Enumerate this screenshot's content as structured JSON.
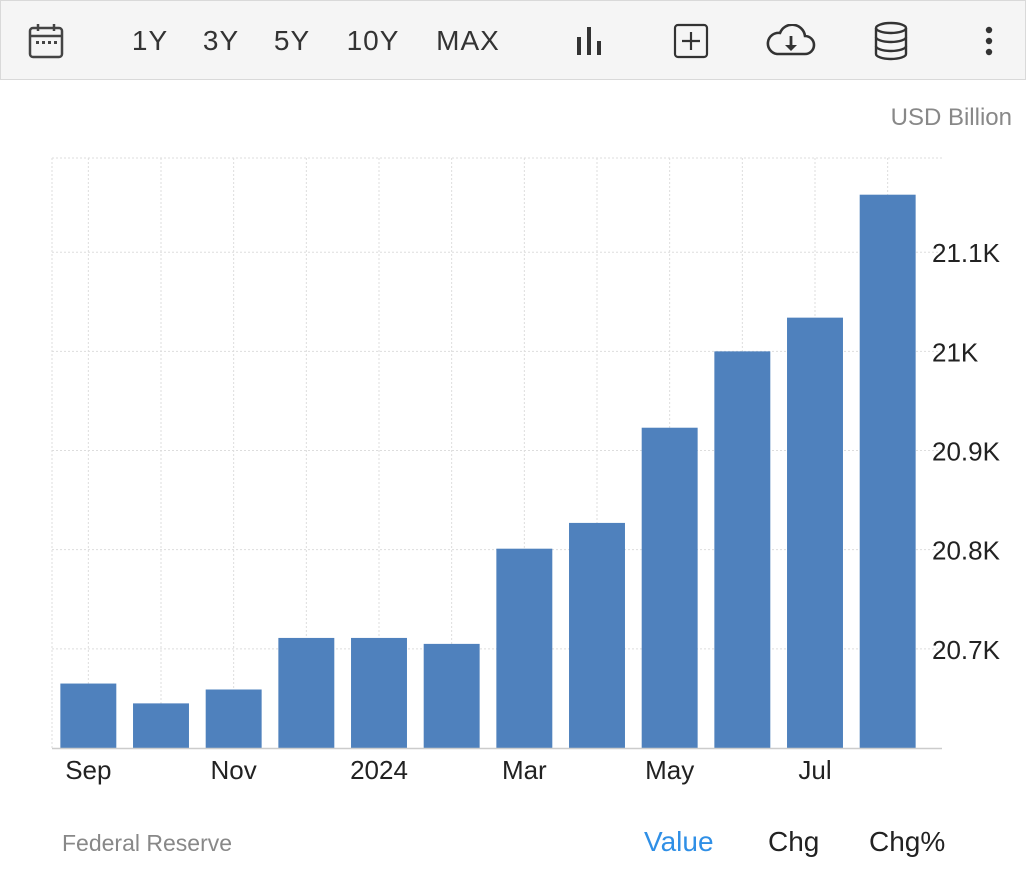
{
  "toolbar": {
    "ranges": [
      "1Y",
      "3Y",
      "5Y",
      "10Y",
      "MAX"
    ],
    "icons": [
      "calendar-icon",
      "bar-chart-icon",
      "add-icon",
      "cloud-download-icon",
      "database-icon",
      "more-vert-icon"
    ]
  },
  "unit": "USD Billion",
  "source": "Federal Reserve",
  "tabs": [
    "Value",
    "Chg",
    "Chg%"
  ],
  "active_tab": "Value",
  "colors": {
    "bar": "#4f81bd",
    "active_tab": "#2f8fe6",
    "grid": "#dddddd",
    "toolbar_bg": "#f5f5f5"
  },
  "chart_data": {
    "type": "bar",
    "categories": [
      "Sep 2023",
      "Oct 2023",
      "Nov 2023",
      "Dec 2023",
      "Jan 2024",
      "Feb 2024",
      "Mar 2024",
      "Apr 2024",
      "May 2024",
      "Jun 2024",
      "Jul 2024",
      "Aug 2024"
    ],
    "values": [
      20665,
      20645,
      20659,
      20711,
      20711,
      20705,
      20801,
      20827,
      20923,
      21000,
      21034,
      21158
    ],
    "x_tick_labels": [
      "Sep",
      "Nov",
      "2024",
      "Mar",
      "May",
      "Jul"
    ],
    "y_tick_labels": [
      "20.7K",
      "20.8K",
      "20.9K",
      "21K",
      "21.1K"
    ],
    "y_ticks": [
      20700,
      20800,
      20900,
      21000,
      21100
    ],
    "ylim": [
      20600,
      21195
    ],
    "y_axis_position": "right",
    "grid": true
  }
}
